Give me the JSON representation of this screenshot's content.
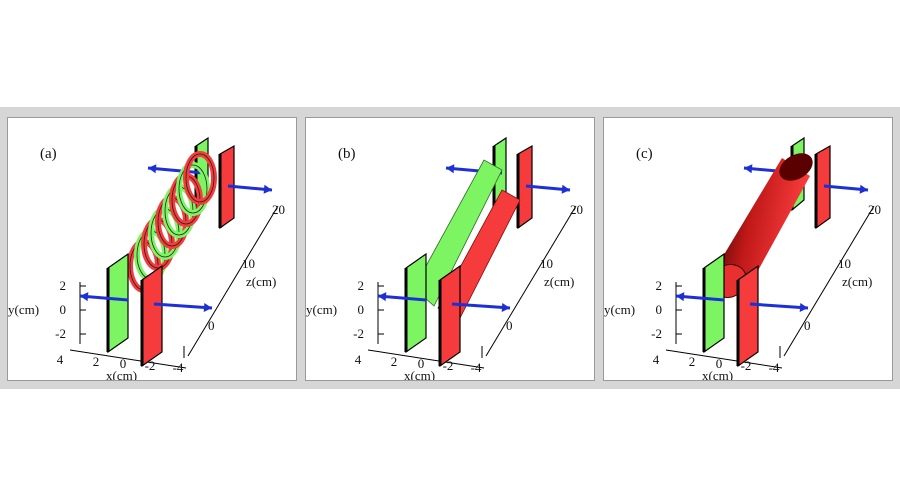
{
  "panels": [
    {
      "label": "(a)",
      "style": "rings"
    },
    {
      "label": "(b)",
      "style": "sheet"
    },
    {
      "label": "(c)",
      "style": "cylinder"
    }
  ],
  "axes": {
    "y_label": "y(cm)",
    "x_label": "x(cm)",
    "z_label": "z(cm)",
    "y_ticks": [
      "2",
      "0",
      "-2"
    ],
    "x_ticks": [
      "4",
      "2",
      "0",
      "-2",
      "-4"
    ],
    "z_ticks": [
      "0",
      "10",
      "20"
    ]
  },
  "colors": {
    "plate_green": "#7df562",
    "plate_red": "#f53b3b",
    "arrow_blue": "#1d2fd6",
    "frame_bg": "#d6d6d6"
  }
}
